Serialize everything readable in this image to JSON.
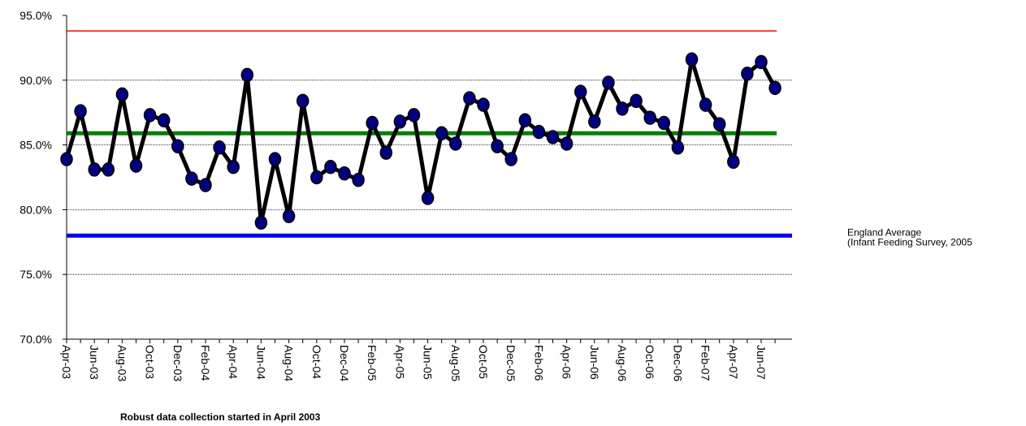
{
  "chart_data": {
    "type": "line",
    "categories": [
      "Apr-03",
      null,
      "Jun-03",
      null,
      "Aug-03",
      null,
      "Oct-03",
      null,
      "Dec-03",
      null,
      "Feb-04",
      null,
      "Apr-04",
      null,
      "Jun-04",
      null,
      "Aug-04",
      null,
      "Oct-04",
      null,
      "Dec-04",
      null,
      "Feb-05",
      null,
      "Apr-05",
      null,
      "Jun-05",
      null,
      "Aug-05",
      null,
      "Oct-05",
      null,
      "Dec-05",
      null,
      "Feb-06",
      null,
      "Apr-06",
      null,
      "Jun-06",
      null,
      "Aug-06",
      null,
      "Oct-06",
      null,
      "Dec-06",
      null,
      "Feb-07",
      null,
      "Apr-07",
      null,
      "Jun-07",
      null
    ],
    "series": [
      {
        "color": "#000000",
        "marker_color": "#000080",
        "values": [
          83.9,
          87.6,
          83.1,
          83.1,
          88.9,
          83.4,
          87.3,
          86.9,
          84.9,
          82.4,
          81.9,
          84.8,
          83.3,
          90.4,
          79.0,
          83.9,
          79.5,
          88.4,
          82.5,
          83.3,
          82.8,
          82.3,
          86.7,
          84.4,
          86.8,
          87.3,
          80.9,
          85.9,
          85.1,
          88.6,
          88.1,
          84.9,
          83.9,
          86.9,
          86.0,
          85.6,
          85.1,
          89.1,
          86.8,
          89.8,
          87.8,
          88.4,
          87.1,
          86.7,
          84.8,
          91.6,
          88.1,
          86.6,
          83.7,
          90.5,
          91.4,
          89.4
        ]
      }
    ],
    "reference_lines": [
      {
        "value": 93.8,
        "color": "#ff0000",
        "width": 1.5
      },
      {
        "value": 85.9,
        "color": "#008000",
        "width": 5
      },
      {
        "value": 78.0,
        "color": "#0000ff",
        "width": 5,
        "label": [
          "England Average",
          "(Infant Feeding Survey, 2005"
        ]
      }
    ],
    "ylim": [
      70,
      95
    ],
    "yticks": [
      {
        "value": 70,
        "label": "70.0%"
      },
      {
        "value": 75,
        "label": "75.0%"
      },
      {
        "value": 80,
        "label": "80.0%"
      },
      {
        "value": 85,
        "label": "85.0%"
      },
      {
        "value": 90,
        "label": "90.0%"
      },
      {
        "value": 95,
        "label": "95.0%"
      }
    ],
    "grid": true,
    "footnote": "Robust data collection started in April 2003"
  }
}
